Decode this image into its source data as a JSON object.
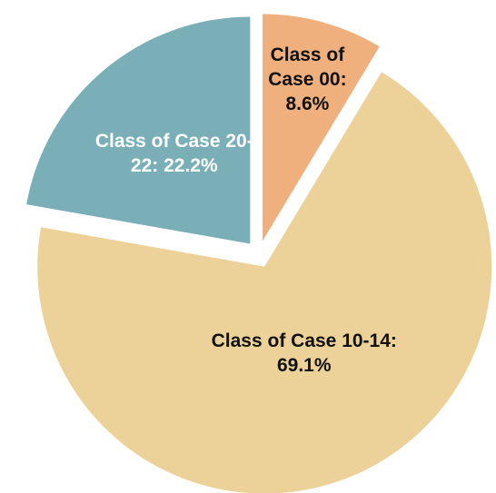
{
  "chart_data": {
    "type": "pie",
    "values": [
      8.6,
      69.1,
      22.2
    ],
    "value_labels": [
      "Class of Case 00: 8.6%",
      "Class of Case 10-14: 69.1%",
      "Class of Case 20-22: 22.2%"
    ],
    "colors": [
      "#f0b07e",
      "#ecd298",
      "#7aafb8"
    ],
    "label_colors": [
      "#111111",
      "#111111",
      "#ffffff"
    ]
  }
}
